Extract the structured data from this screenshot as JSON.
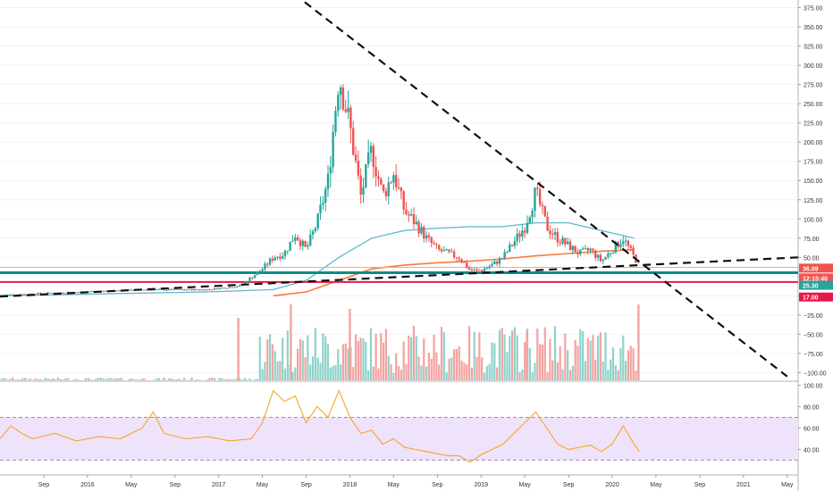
{
  "colors": {
    "up": "#26a69a",
    "down": "#ef5350",
    "vol_up": "#8fd3cb",
    "vol_down": "#f4a3a1",
    "ma_slow": "#5fb8d0",
    "ma_fast": "#f57c3a",
    "rsi_line": "#f5a623",
    "rsi_band": "#efe3fb",
    "support_teal": "#0e8a8a",
    "support_red": "#e8174a",
    "price_tag_36": "#ef5350",
    "price_tag_25": "#26a69a",
    "price_tag_17": "#e8174a",
    "timer_tag": "#ef5350"
  },
  "chart_data": {
    "type": "candlestick",
    "price_axis": {
      "ticks": [
        "375.00",
        "350.00",
        "325.00",
        "300.00",
        "275.00",
        "250.00",
        "225.00",
        "200.00",
        "175.00",
        "150.00",
        "125.00",
        "100.00",
        "75.00",
        "50.00",
        "25.00",
        "0.00",
        "−25.00",
        "−50.00",
        "−75.00",
        "−100.00"
      ],
      "ylim": [
        -110,
        385
      ]
    },
    "rsi_axis": {
      "ticks": [
        "100.00",
        "80.00",
        "60.00",
        "40.00"
      ],
      "ylim": [
        17,
        103
      ],
      "band": [
        30,
        70
      ]
    },
    "time_axis": {
      "ticks": [
        "Sep",
        "2016",
        "May",
        "Sep",
        "2017",
        "May",
        "Sep",
        "2018",
        "May",
        "Sep",
        "2019",
        "May",
        "Sep",
        "2020",
        "May",
        "Sep",
        "2021",
        "May"
      ],
      "xlim": [
        "2015-05",
        "2021-06"
      ]
    },
    "price_labels": {
      "p36": "36.09",
      "timer": "12:15:40",
      "p25": "25.30",
      "p17": "17.00"
    },
    "levels": {
      "teal": 30,
      "red": 18,
      "orange_thin": 37
    },
    "trendlines": [
      {
        "name": "descending",
        "points": [
          [
            "2017-05",
            425
          ],
          [
            "2021-05",
            -105
          ]
        ]
      },
      {
        "name": "ascending",
        "points": [
          [
            "2015-05",
            -1
          ],
          [
            "2021-06",
            50
          ]
        ]
      }
    ],
    "price_path": [
      [
        "2015-05",
        1
      ],
      [
        "2016-06",
        8
      ],
      [
        "2016-12",
        8
      ],
      [
        "2017-03",
        13
      ],
      [
        "2017-05",
        35
      ],
      [
        "2017-06",
        50
      ],
      [
        "2017-07",
        55
      ],
      [
        "2017-08",
        80
      ],
      [
        "2017-09",
        60
      ],
      [
        "2017-10",
        95
      ],
      [
        "2017-11",
        150
      ],
      [
        "2017-12",
        290
      ],
      [
        "2018-01",
        220
      ],
      [
        "2018-02",
        130
      ],
      [
        "2018-03",
        190
      ],
      [
        "2018-04",
        130
      ],
      [
        "2018-05",
        160
      ],
      [
        "2018-06",
        110
      ],
      [
        "2018-07",
        95
      ],
      [
        "2018-08",
        75
      ],
      [
        "2018-09",
        60
      ],
      [
        "2018-10",
        55
      ],
      [
        "2018-11",
        50
      ],
      [
        "2018-12",
        33
      ],
      [
        "2019-01",
        33
      ],
      [
        "2019-02",
        40
      ],
      [
        "2019-03",
        50
      ],
      [
        "2019-04",
        70
      ],
      [
        "2019-05",
        90
      ],
      [
        "2019-06",
        135
      ],
      [
        "2019-07",
        90
      ],
      [
        "2019-08",
        75
      ],
      [
        "2019-09",
        65
      ],
      [
        "2019-10",
        55
      ],
      [
        "2019-11",
        60
      ],
      [
        "2019-12",
        45
      ],
      [
        "2020-01",
        60
      ],
      [
        "2020-02",
        75
      ],
      [
        "2020-03",
        50
      ],
      [
        "2020-03-15",
        40
      ]
    ],
    "ma_slow_path": [
      [
        "2015-05",
        0
      ],
      [
        "2016-12",
        5
      ],
      [
        "2017-06",
        8
      ],
      [
        "2017-09",
        20
      ],
      [
        "2017-12",
        50
      ],
      [
        "2018-03",
        75
      ],
      [
        "2018-06",
        85
      ],
      [
        "2018-09",
        88
      ],
      [
        "2018-12",
        90
      ],
      [
        "2019-03",
        90
      ],
      [
        "2019-06",
        95
      ],
      [
        "2019-09",
        95
      ],
      [
        "2019-12",
        85
      ],
      [
        "2020-03",
        75
      ]
    ],
    "ma_fast_path": [
      [
        "2017-06",
        0
      ],
      [
        "2017-09",
        5
      ],
      [
        "2017-12",
        20
      ],
      [
        "2018-03",
        35
      ],
      [
        "2018-06",
        40
      ],
      [
        "2018-09",
        43
      ],
      [
        "2018-12",
        45
      ],
      [
        "2019-03",
        48
      ],
      [
        "2019-06",
        52
      ],
      [
        "2019-09",
        55
      ],
      [
        "2019-12",
        58
      ],
      [
        "2020-03",
        60
      ]
    ],
    "rsi_path": [
      [
        "2015-05",
        50
      ],
      [
        "2015-06",
        62
      ],
      [
        "2015-07",
        55
      ],
      [
        "2015-08",
        50
      ],
      [
        "2015-10",
        55
      ],
      [
        "2015-12",
        48
      ],
      [
        "2016-02",
        52
      ],
      [
        "2016-04",
        50
      ],
      [
        "2016-06",
        60
      ],
      [
        "2016-07",
        75
      ],
      [
        "2016-08",
        55
      ],
      [
        "2016-10",
        50
      ],
      [
        "2016-12",
        52
      ],
      [
        "2017-02",
        48
      ],
      [
        "2017-04",
        50
      ],
      [
        "2017-05",
        65
      ],
      [
        "2017-06",
        95
      ],
      [
        "2017-07",
        85
      ],
      [
        "2017-08",
        90
      ],
      [
        "2017-09",
        65
      ],
      [
        "2017-10",
        80
      ],
      [
        "2017-11",
        70
      ],
      [
        "2017-12",
        95
      ],
      [
        "2018-01",
        70
      ],
      [
        "2018-02",
        55
      ],
      [
        "2018-03",
        58
      ],
      [
        "2018-04",
        45
      ],
      [
        "2018-05",
        50
      ],
      [
        "2018-06",
        42
      ],
      [
        "2018-07",
        40
      ],
      [
        "2018-08",
        38
      ],
      [
        "2018-09",
        36
      ],
      [
        "2018-10",
        34
      ],
      [
        "2018-11",
        34
      ],
      [
        "2018-12",
        28
      ],
      [
        "2019-01",
        35
      ],
      [
        "2019-02",
        40
      ],
      [
        "2019-03",
        45
      ],
      [
        "2019-04",
        55
      ],
      [
        "2019-05",
        65
      ],
      [
        "2019-06",
        75
      ],
      [
        "2019-07",
        60
      ],
      [
        "2019-08",
        45
      ],
      [
        "2019-09",
        40
      ],
      [
        "2019-10",
        42
      ],
      [
        "2019-11",
        44
      ],
      [
        "2019-12",
        38
      ],
      [
        "2020-01",
        45
      ],
      [
        "2020-02",
        62
      ],
      [
        "2020-03",
        45
      ],
      [
        "2020-03-15",
        38
      ]
    ]
  }
}
